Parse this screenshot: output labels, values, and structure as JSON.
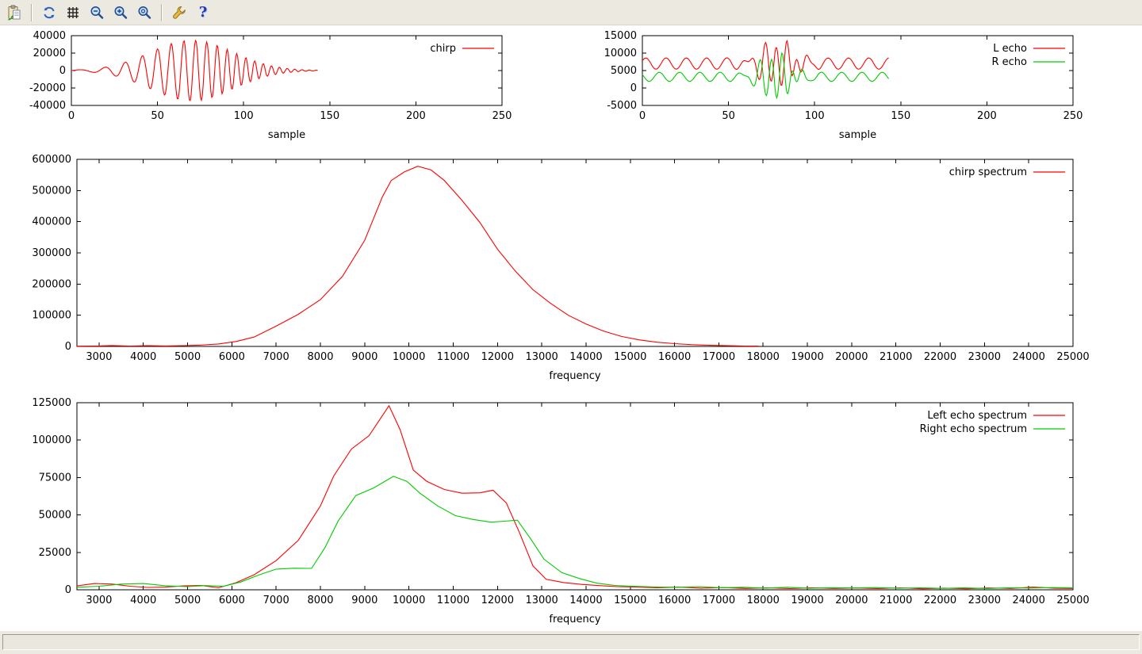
{
  "window": {
    "canvas_background": "#ffffff",
    "chrome_background": "#ece9e1",
    "status_text": ""
  },
  "toolbar": {
    "buttons": [
      {
        "name": "copy-to-clipboard"
      },
      {
        "name": "replot"
      },
      {
        "name": "toggle-grid"
      },
      {
        "name": "zoom-previous"
      },
      {
        "name": "zoom-next"
      },
      {
        "name": "autoscale"
      },
      {
        "name": "configure"
      },
      {
        "name": "help",
        "glyph": "?"
      }
    ]
  },
  "chart_data": [
    {
      "id": "chirp",
      "type": "line",
      "xlabel": "sample",
      "x_range": [
        0,
        250
      ],
      "y_range": [
        -40000,
        40000
      ],
      "x_ticks": [
        0,
        50,
        100,
        150,
        200,
        250
      ],
      "y_ticks": [
        -40000,
        -20000,
        0,
        20000,
        40000
      ],
      "grid": false,
      "legend_position": "top-right-inside",
      "series": [
        {
          "name": "chirp",
          "label": "chirp",
          "color": "#ff0000",
          "synth": {
            "n": 143,
            "step": 0.5,
            "base": 0,
            "envAmp": 35000,
            "envCenter": 70,
            "envSigma": 24,
            "f0": 0.05,
            "f1": 0.25,
            "T": 143,
            "phase0": 0
          }
        }
      ]
    },
    {
      "id": "echoes",
      "type": "line",
      "xlabel": "sample",
      "x_range": [
        0,
        250
      ],
      "y_range": [
        -5000,
        15000
      ],
      "x_ticks": [
        0,
        50,
        100,
        150,
        200,
        250
      ],
      "y_ticks": [
        -5000,
        0,
        5000,
        10000,
        15000
      ],
      "grid": false,
      "legend_position": "top-right-inside",
      "series": [
        {
          "name": "l-echo",
          "label": "L echo",
          "color": "#ff0000",
          "synth": {
            "n": 143,
            "step": 0.5,
            "base": 7000,
            "ripples": [
              {
                "amp": 1600,
                "freq": 0.085,
                "phase": 0.5
              }
            ],
            "envAmp": 6200,
            "envCenter": 78,
            "envSigma": 9,
            "f0": 0.05,
            "f1": 0.25,
            "T": 143,
            "phase0": 0.8
          }
        },
        {
          "name": "r-echo",
          "label": "R echo",
          "color": "#00cc00",
          "synth": {
            "n": 143,
            "step": 0.5,
            "base": 3200,
            "ripples": [
              {
                "amp": 1300,
                "freq": 0.085,
                "phase": 2.6
              }
            ],
            "envAmp": 6500,
            "envCenter": 77,
            "envSigma": 8,
            "f0": 0.05,
            "f1": 0.25,
            "T": 143,
            "phase0": 3.6
          }
        }
      ]
    },
    {
      "id": "chirp_spectrum",
      "type": "line",
      "xlabel": "frequency",
      "x_range": [
        2500,
        25000
      ],
      "y_range": [
        0,
        600000
      ],
      "x_ticks": [
        3000,
        4000,
        5000,
        6000,
        7000,
        8000,
        9000,
        10000,
        11000,
        12000,
        13000,
        14000,
        15000,
        16000,
        17000,
        18000,
        19000,
        20000,
        21000,
        22000,
        23000,
        24000,
        25000
      ],
      "y_ticks": [
        0,
        100000,
        200000,
        300000,
        400000,
        500000,
        600000
      ],
      "grid": false,
      "legend_position": "top-right-inside",
      "series": [
        {
          "name": "chirp-spectrum",
          "label": "chirp spectrum",
          "color": "#ff0000",
          "points": [
            [
              2500,
              800
            ],
            [
              3000,
              1500
            ],
            [
              3300,
              2800
            ],
            [
              3700,
              1200
            ],
            [
              4100,
              2600
            ],
            [
              4500,
              1500
            ],
            [
              4900,
              2600
            ],
            [
              5300,
              4200
            ],
            [
              5700,
              8000
            ],
            [
              6100,
              16000
            ],
            [
              6500,
              30000
            ],
            [
              7000,
              65000
            ],
            [
              7500,
              103000
            ],
            [
              8000,
              150000
            ],
            [
              8500,
              225000
            ],
            [
              9000,
              340000
            ],
            [
              9400,
              480000
            ],
            [
              9600,
              532000
            ],
            [
              9900,
              560000
            ],
            [
              10200,
              578000
            ],
            [
              10500,
              566000
            ],
            [
              10800,
              532000
            ],
            [
              11200,
              468000
            ],
            [
              11600,
              398000
            ],
            [
              12000,
              312000
            ],
            [
              12400,
              242000
            ],
            [
              12800,
              182000
            ],
            [
              13200,
              138000
            ],
            [
              13600,
              100000
            ],
            [
              14000,
              72000
            ],
            [
              14400,
              49000
            ],
            [
              14800,
              32000
            ],
            [
              15200,
              21000
            ],
            [
              15600,
              13500
            ],
            [
              16000,
              8800
            ],
            [
              16400,
              5600
            ],
            [
              16800,
              3600
            ],
            [
              17200,
              2200
            ],
            [
              17600,
              1300
            ],
            [
              17900,
              900
            ]
          ]
        }
      ]
    },
    {
      "id": "echo_spectra",
      "type": "line",
      "xlabel": "frequency",
      "x_range": [
        2500,
        25000
      ],
      "y_range": [
        0,
        125000
      ],
      "x_ticks": [
        3000,
        4000,
        5000,
        6000,
        7000,
        8000,
        9000,
        10000,
        11000,
        12000,
        13000,
        14000,
        15000,
        16000,
        17000,
        18000,
        19000,
        20000,
        21000,
        22000,
        23000,
        24000,
        25000
      ],
      "y_ticks": [
        0,
        25000,
        50000,
        75000,
        100000,
        125000
      ],
      "grid": false,
      "legend_position": "top-right-inside",
      "series": [
        {
          "name": "left-echo-spectrum",
          "label": "Left echo spectrum",
          "color": "#ff0000",
          "points": [
            [
              2500,
              2600
            ],
            [
              2900,
              4200
            ],
            [
              3300,
              3800
            ],
            [
              3700,
              2400
            ],
            [
              4100,
              1600
            ],
            [
              4500,
              1800
            ],
            [
              4900,
              2600
            ],
            [
              5300,
              2900
            ],
            [
              5700,
              1300
            ],
            [
              6100,
              4800
            ],
            [
              6500,
              10000
            ],
            [
              7000,
              19500
            ],
            [
              7500,
              33000
            ],
            [
              8000,
              56000
            ],
            [
              8300,
              76000
            ],
            [
              8700,
              94000
            ],
            [
              9100,
              103000
            ],
            [
              9550,
              123000
            ],
            [
              9800,
              107000
            ],
            [
              10100,
              80000
            ],
            [
              10400,
              72500
            ],
            [
              10800,
              67000
            ],
            [
              11200,
              64500
            ],
            [
              11600,
              64800
            ],
            [
              11900,
              66500
            ],
            [
              12200,
              58000
            ],
            [
              12500,
              38000
            ],
            [
              12800,
              16000
            ],
            [
              13100,
              7000
            ],
            [
              13500,
              4800
            ],
            [
              13900,
              3600
            ],
            [
              14300,
              2800
            ],
            [
              14700,
              2100
            ],
            [
              15100,
              1900
            ],
            [
              15600,
              1400
            ],
            [
              16100,
              1800
            ],
            [
              16600,
              1100
            ],
            [
              17100,
              1500
            ],
            [
              17600,
              900
            ],
            [
              18100,
              1300
            ],
            [
              18600,
              800
            ],
            [
              19100,
              1400
            ],
            [
              19600,
              900
            ],
            [
              20100,
              1200
            ],
            [
              20600,
              800
            ],
            [
              21100,
              1300
            ],
            [
              21600,
              700
            ],
            [
              22100,
              1100
            ],
            [
              22600,
              700
            ],
            [
              23100,
              1200
            ],
            [
              23600,
              900
            ],
            [
              24100,
              1800
            ],
            [
              24600,
              1000
            ],
            [
              25000,
              900
            ]
          ]
        },
        {
          "name": "right-echo-spectrum",
          "label": "Right echo spectrum",
          "color": "#00cc00",
          "points": [
            [
              2500,
              1700
            ],
            [
              3000,
              2400
            ],
            [
              3500,
              3800
            ],
            [
              4000,
              4200
            ],
            [
              4500,
              2700
            ],
            [
              5000,
              2100
            ],
            [
              5400,
              2800
            ],
            [
              5800,
              2300
            ],
            [
              6200,
              5200
            ],
            [
              6600,
              9800
            ],
            [
              7000,
              13800
            ],
            [
              7400,
              14400
            ],
            [
              7800,
              14300
            ],
            [
              8100,
              28000
            ],
            [
              8400,
              46000
            ],
            [
              8800,
              63000
            ],
            [
              9200,
              68000
            ],
            [
              9650,
              75800
            ],
            [
              9950,
              72500
            ],
            [
              10250,
              64500
            ],
            [
              10650,
              56000
            ],
            [
              11050,
              49500
            ],
            [
              11450,
              47000
            ],
            [
              11850,
              45200
            ],
            [
              12150,
              45800
            ],
            [
              12450,
              46500
            ],
            [
              12750,
              34000
            ],
            [
              13050,
              20500
            ],
            [
              13450,
              11500
            ],
            [
              13850,
              7500
            ],
            [
              14250,
              4400
            ],
            [
              14650,
              2900
            ],
            [
              15050,
              2400
            ],
            [
              15550,
              1900
            ],
            [
              16050,
              1700
            ],
            [
              16550,
              2100
            ],
            [
              17050,
              1400
            ],
            [
              17550,
              1700
            ],
            [
              18050,
              1100
            ],
            [
              18550,
              1700
            ],
            [
              19050,
              1000
            ],
            [
              19550,
              1400
            ],
            [
              20050,
              1200
            ],
            [
              20550,
              1500
            ],
            [
              21050,
              1000
            ],
            [
              21550,
              1300
            ],
            [
              22050,
              950
            ],
            [
              22550,
              1250
            ],
            [
              23050,
              850
            ],
            [
              23550,
              1350
            ],
            [
              24050,
              1150
            ],
            [
              24550,
              1500
            ],
            [
              25000,
              1250
            ]
          ]
        }
      ]
    }
  ]
}
